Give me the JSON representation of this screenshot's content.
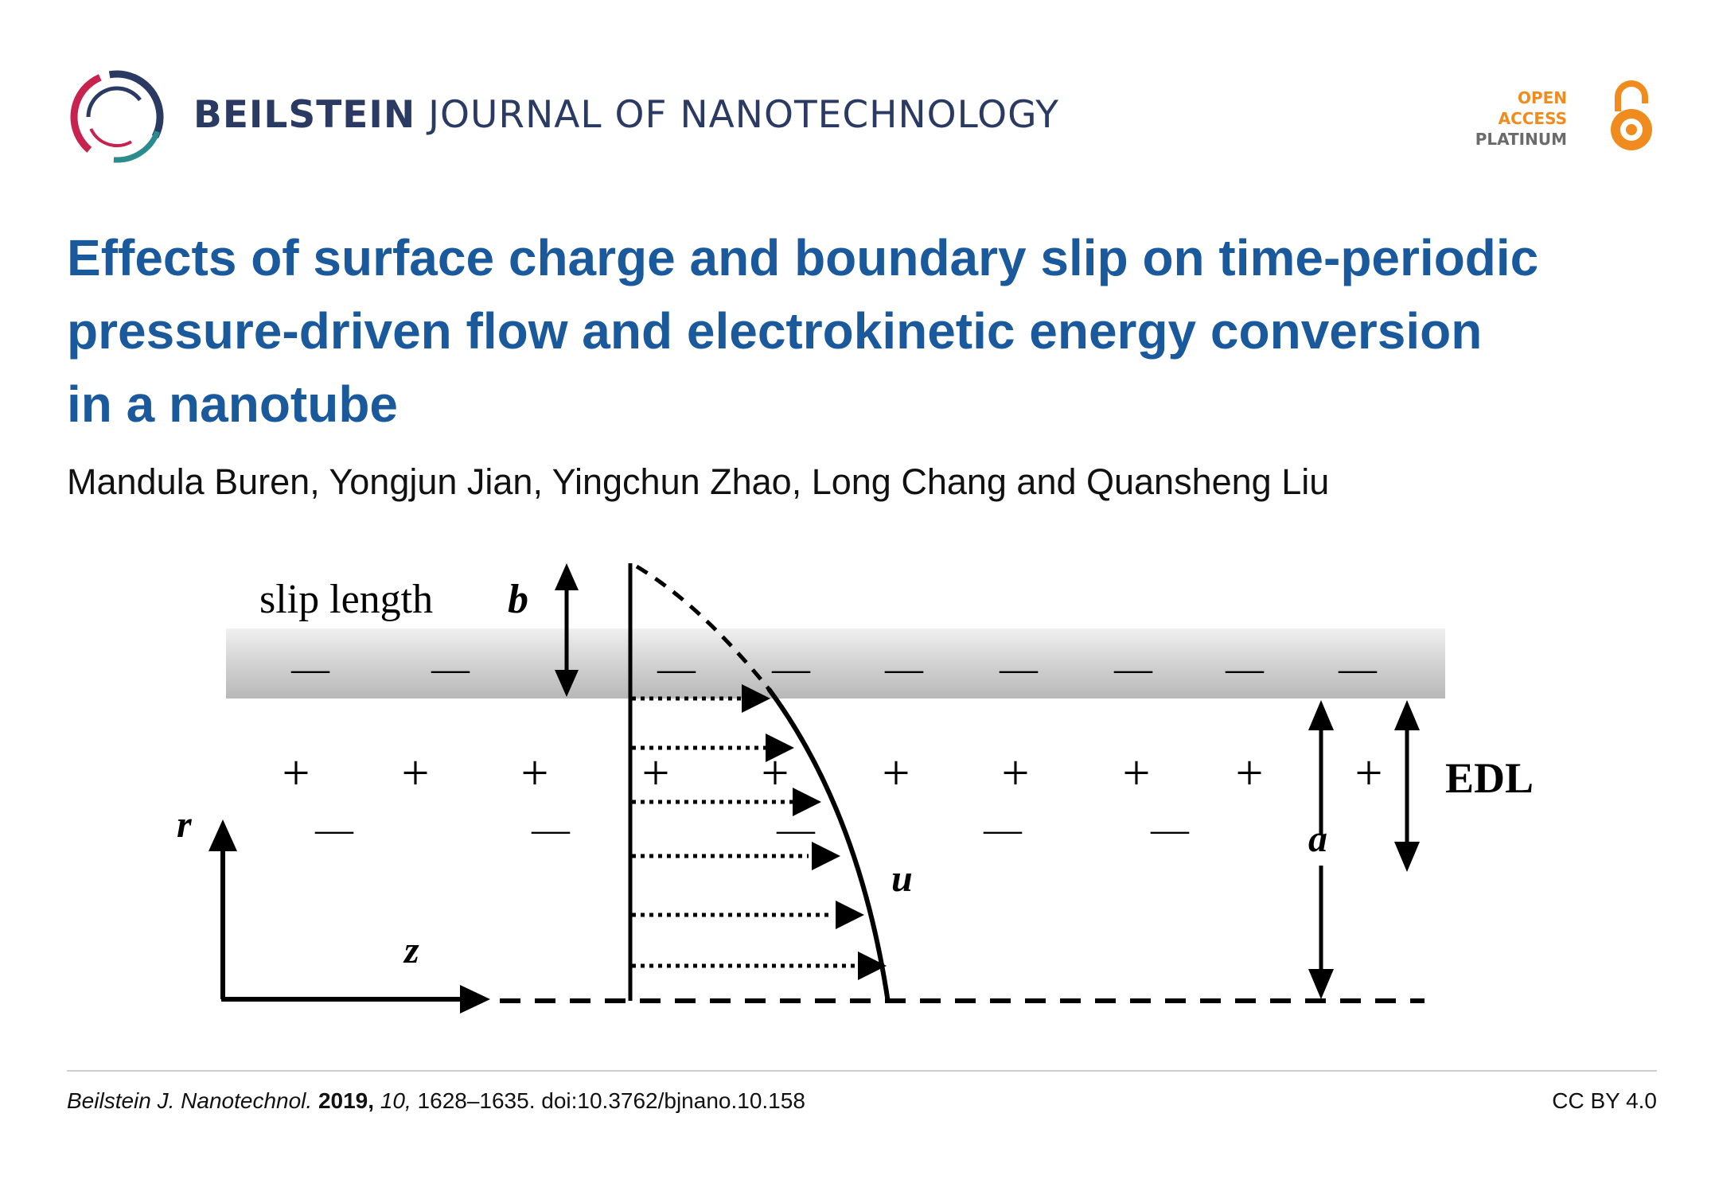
{
  "colors": {
    "title": "#1a5a9c",
    "journal": "#2b3a63",
    "oa_orange": "#f08c1e",
    "oa_gray": "#6b6b6b"
  },
  "header": {
    "logo_icon": "beilstein-ring-logo",
    "journal_bold": "BEILSTEIN",
    "journal_rest": " JOURNAL OF NANOTECHNOLOGY",
    "open_access": {
      "line1": "OPEN",
      "line2": "ACCESS",
      "line3": "PLATINUM",
      "icon": "open-access-lock-icon"
    }
  },
  "article": {
    "title_line1": "Effects of surface charge and boundary slip on time-periodic",
    "title_line2": "pressure-driven flow and electrokinetic energy conversion",
    "title_line3": "in a nanotube",
    "authors": "Mandula Buren, Yongjun Jian, Yingchun Zhao, Long Chang and Quansheng Liu"
  },
  "figure": {
    "slip_label": "slip length",
    "slip_symbol": "b",
    "edl_label": "EDL",
    "radius_label": "a",
    "velocity_label": "u",
    "r_axis": "r",
    "z_axis": "z",
    "minus": "—",
    "plus": "+"
  },
  "footer": {
    "journal_abbrev": "Beilstein J. Nanotechnol.",
    "year": "2019,",
    "volume": "10,",
    "pages_doi": "1628–1635. doi:10.3762/bjnano.10.158",
    "license": "CC BY 4.0"
  }
}
